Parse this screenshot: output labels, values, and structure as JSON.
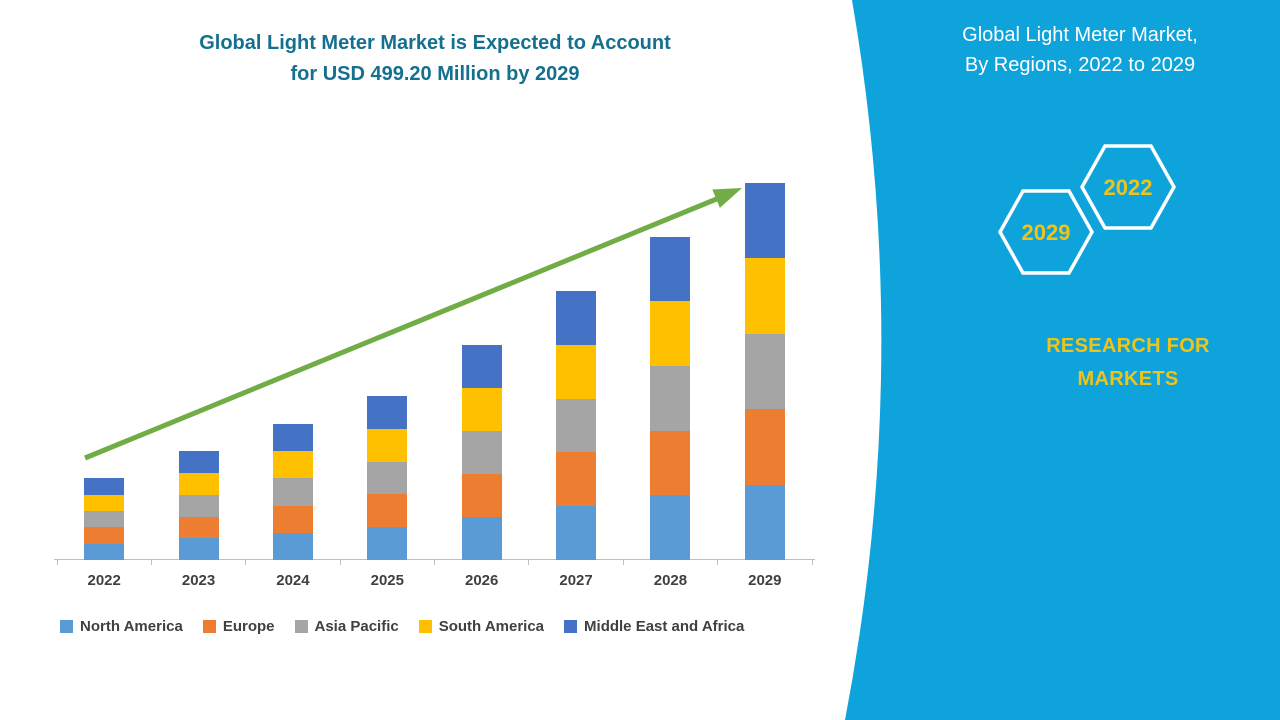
{
  "chart": {
    "title_line1": "Global Light Meter Market is Expected to Account",
    "title_line2": "for USD 499.20 Million by 2029",
    "title_color": "#15708F"
  },
  "chart_data": {
    "type": "bar",
    "stacked": true,
    "title": "Global Light Meter Market is Expected to Account for USD 499.20 Million by 2029",
    "unit": "USD Million",
    "categories": [
      "2022",
      "2023",
      "2024",
      "2025",
      "2026",
      "2027",
      "2028",
      "2029"
    ],
    "series": [
      {
        "name": "North America",
        "color": "#5B9BD5",
        "values": [
          21.6,
          28.8,
          36.0,
          43.4,
          57.0,
          71.2,
          85.6,
          99.8
        ]
      },
      {
        "name": "Europe",
        "color": "#ED7D31",
        "values": [
          21.6,
          28.8,
          36.0,
          43.4,
          57.0,
          71.2,
          85.6,
          99.8
        ]
      },
      {
        "name": "Asia Pacific",
        "color": "#A5A5A5",
        "values": [
          21.6,
          28.8,
          36.0,
          43.4,
          57.0,
          71.2,
          85.6,
          99.8
        ]
      },
      {
        "name": "South America",
        "color": "#FFC000",
        "values": [
          21.6,
          28.8,
          36.0,
          43.4,
          57.0,
          71.2,
          85.6,
          99.9
        ]
      },
      {
        "name": "Middle East and Africa",
        "color": "#4472C4",
        "values": [
          21.6,
          28.8,
          36.0,
          43.4,
          57.0,
          71.2,
          85.6,
          99.9
        ]
      }
    ],
    "totals": [
      108,
      144,
      180,
      217,
      285,
      356,
      428,
      499.2
    ],
    "ylim": [
      0,
      520
    ],
    "grid": false,
    "legend_position": "bottom",
    "annotations": [
      "green upward trend arrow from 2022 toward 2029 bar"
    ]
  },
  "side_panel": {
    "background_color": "#0FA3DB",
    "title_line1": "Global Light Meter Market,",
    "title_line2": "By Regions, 2022 to 2029",
    "hexagons": {
      "back_label": "2022",
      "front_label": "2029"
    },
    "brand_line1": "RESEARCH FOR",
    "brand_line2": "MARKETS",
    "accent_yellow": "#EFC319",
    "arrow_green": "#70AD47"
  }
}
